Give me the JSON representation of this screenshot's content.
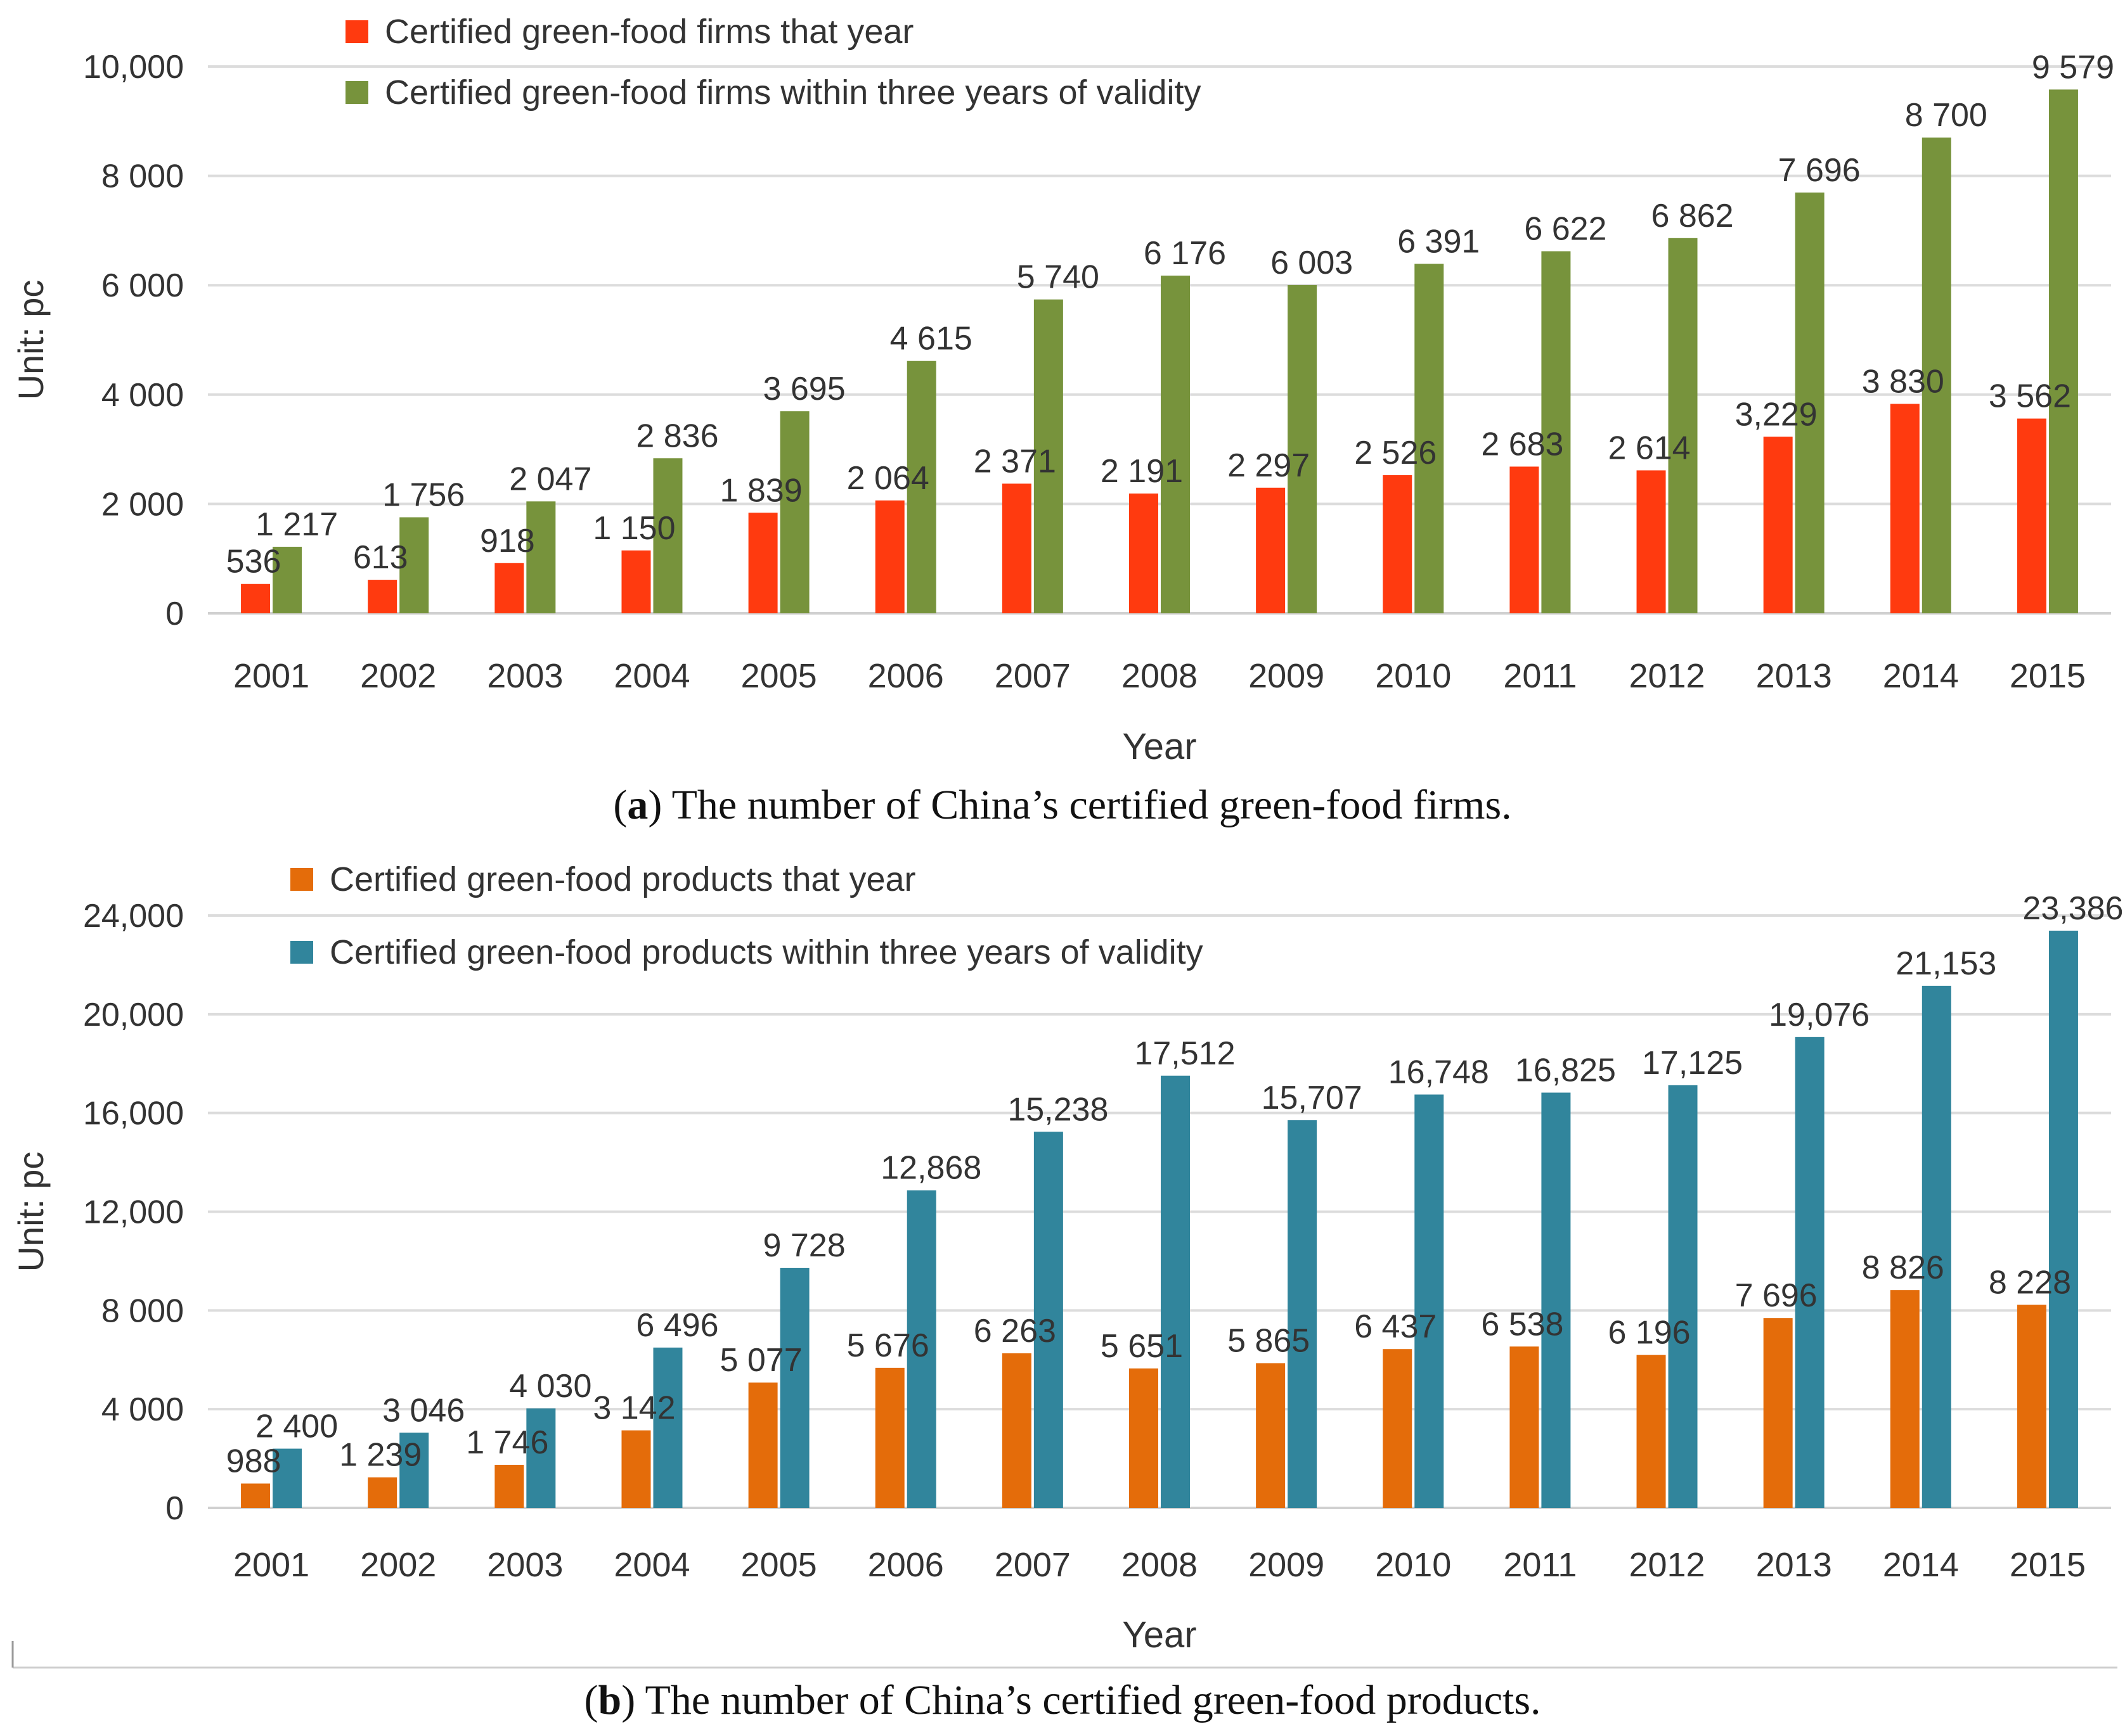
{
  "chart_data": [
    {
      "type": "bar",
      "title": "",
      "caption_letter": "a",
      "caption_text": ") The number of China’s certified green-food firms.",
      "xlabel": "Year",
      "ylabel": "Unit: pc",
      "ylim": [
        0,
        10000
      ],
      "yticks": [
        0,
        2000,
        4000,
        6000,
        8000,
        10000
      ],
      "ytick_labels": [
        "0",
        "2 000",
        "4 000",
        "6 000",
        "8 000",
        "10,000"
      ],
      "categories": [
        "2001",
        "2002",
        "2003",
        "2004",
        "2005",
        "2006",
        "2007",
        "2008",
        "2009",
        "2010",
        "2011",
        "2012",
        "2013",
        "2014",
        "2015"
      ],
      "series": [
        {
          "name": "Certified green-food firms that year",
          "color": "#ff3a0f",
          "values": [
            536,
            613,
            918,
            1150,
            1839,
            2064,
            2371,
            2191,
            2297,
            2526,
            2683,
            2614,
            3229,
            3830,
            3562
          ],
          "labels": [
            "536",
            "613",
            "918",
            "1 150",
            "1 839",
            "2 064",
            "2 371",
            "2 191",
            "2 297",
            "2 526",
            "2 683",
            "2 614",
            "3,229",
            "3 830",
            "3 562"
          ]
        },
        {
          "name": "Certified green-food firms within three years of validity",
          "color": "#77933c",
          "values": [
            1217,
            1756,
            2047,
            2836,
            3695,
            4615,
            5740,
            6176,
            6003,
            6391,
            6622,
            6862,
            7696,
            8700,
            9579
          ],
          "labels": [
            "1 217",
            "1 756",
            "2 047",
            "2 836",
            "3 695",
            "4 615",
            "5 740",
            "6 176",
            "6 003",
            "6 391",
            "6 622",
            "6 862",
            "7 696",
            "8 700",
            "9 579"
          ]
        }
      ]
    },
    {
      "type": "bar",
      "title": "",
      "caption_letter": "b",
      "caption_text": ") The number of China’s certified green-food products.",
      "xlabel": "Year",
      "ylabel": "Unit: pc",
      "ylim": [
        0,
        24000
      ],
      "yticks": [
        0,
        4000,
        8000,
        12000,
        16000,
        20000,
        24000
      ],
      "ytick_labels": [
        "0",
        "4 000",
        "8 000",
        "12,000",
        "16,000",
        "20,000",
        "24,000"
      ],
      "categories": [
        "2001",
        "2002",
        "2003",
        "2004",
        "2005",
        "2006",
        "2007",
        "2008",
        "2009",
        "2010",
        "2011",
        "2012",
        "2013",
        "2014",
        "2015"
      ],
      "series": [
        {
          "name": "Certified green-food products that year",
          "color": "#e46c0a",
          "values": [
            988,
            1239,
            1746,
            3142,
            5077,
            5676,
            6263,
            5651,
            5865,
            6437,
            6538,
            6196,
            7696,
            8826,
            8228
          ],
          "labels": [
            "988",
            "1 239",
            "1 746",
            "3 142",
            "5 077",
            "5 676",
            "6 263",
            "5 651",
            "5 865",
            "6 437",
            "6 538",
            "6 196",
            "7 696",
            "8 826",
            "8 228"
          ]
        },
        {
          "name": "Certified green-food products within three years of validity",
          "color": "#31859c",
          "values": [
            2400,
            3046,
            4030,
            6496,
            9728,
            12868,
            15238,
            17512,
            15707,
            16748,
            16825,
            17125,
            19076,
            21153,
            23386
          ],
          "labels": [
            "2 400",
            "3 046",
            "4 030",
            "6 496",
            "9 728",
            "12,868",
            "15,238",
            "17,512",
            "15,707",
            "16,748",
            "16,825",
            "17,125",
            "19,076",
            "21,153",
            "23,386"
          ]
        }
      ]
    }
  ]
}
